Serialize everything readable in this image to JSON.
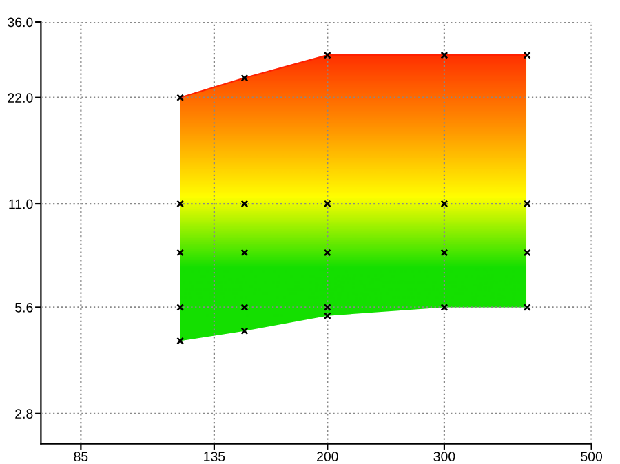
{
  "chart_data": {
    "type": "line",
    "log": "xy",
    "xlim": [
      74,
      500
    ],
    "ylim": [
      2.3,
      36
    ],
    "xticks": [
      85,
      135,
      200,
      300,
      500
    ],
    "yticks": [
      {
        "value": 2.8,
        "label": "2.8"
      },
      {
        "value": 5.6,
        "label": "5.6"
      },
      {
        "value": 11,
        "label": "11.0"
      },
      {
        "value": 22,
        "label": "22.0"
      },
      {
        "value": 36,
        "label": "36.0"
      }
    ],
    "grid": true,
    "series": [
      {
        "color": "#ff2000",
        "x": [
          120,
          150,
          200,
          300,
          400
        ],
        "values": [
          22,
          25,
          29,
          29,
          29
        ],
        "lower": [
          4.5,
          4.8,
          5.3,
          5.6,
          5.6
        ],
        "upper": [
          22,
          25,
          29,
          29,
          29
        ],
        "colors": [
          "#00dd00",
          "#00dd00",
          "#ffff00",
          "#ff8800",
          "#ff2000"
        ]
      },
      {
        "type": "scatter",
        "marker": "cross",
        "color": "#000000",
        "x": [
          120,
          150,
          200,
          300,
          400,
          120,
          150,
          200,
          300,
          400,
          120,
          150,
          200,
          300,
          400,
          120,
          150,
          200,
          300,
          400,
          120,
          150,
          200
        ],
        "values": [
          22,
          25,
          29,
          29,
          29,
          11,
          11,
          11,
          11,
          11,
          8,
          8,
          8,
          8,
          8,
          5.6,
          5.6,
          5.6,
          5.6,
          5.6,
          4.5,
          4.8,
          5.3
        ]
      }
    ]
  }
}
